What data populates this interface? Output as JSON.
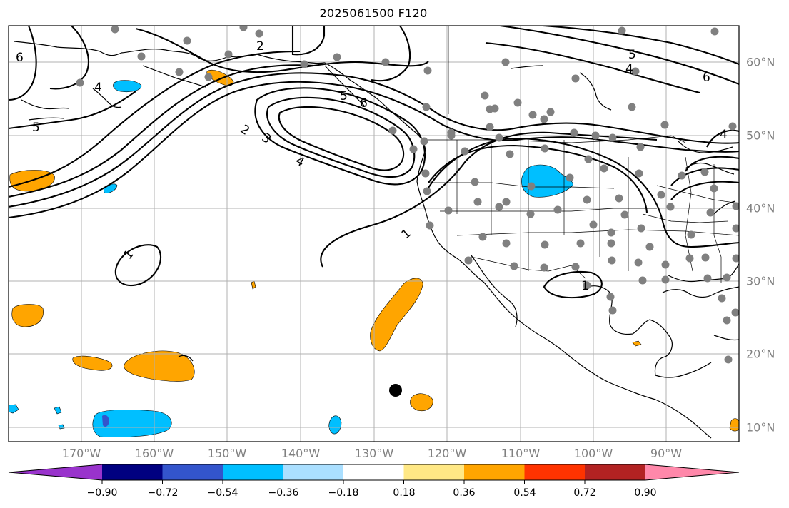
{
  "title": "2025061500 F120",
  "lon_labels": [
    "170°W",
    "160°W",
    "150°W",
    "140°W",
    "130°W",
    "120°W",
    "110°W",
    "100°W",
    "90°W"
  ],
  "lat_labels": [
    "60°N",
    "50°N",
    "40°N",
    "30°N",
    "20°N",
    "10°N"
  ],
  "contour_labels": [
    "6",
    "2",
    "5",
    "4",
    "1",
    "2",
    "3",
    "4",
    "5",
    "6",
    "5",
    "4",
    "6",
    "4",
    "1",
    "1"
  ],
  "colorbar": {
    "ticks": [
      "−0.90",
      "−0.72",
      "−0.54",
      "−0.36",
      "−0.18",
      "0.18",
      "0.36",
      "0.54",
      "0.72",
      "0.90"
    ],
    "colors": [
      "#9933cc",
      "#000080",
      "#3355cc",
      "#00bfff",
      "#aadfff",
      "#ffffff",
      "#ffe885",
      "#ffa500",
      "#ff3300",
      "#b22222",
      "#ff88aa"
    ]
  },
  "colors": {
    "orange": "#ffa500",
    "cyan": "#00bfff",
    "station": "#808080",
    "grid": "#b0b0b0"
  }
}
